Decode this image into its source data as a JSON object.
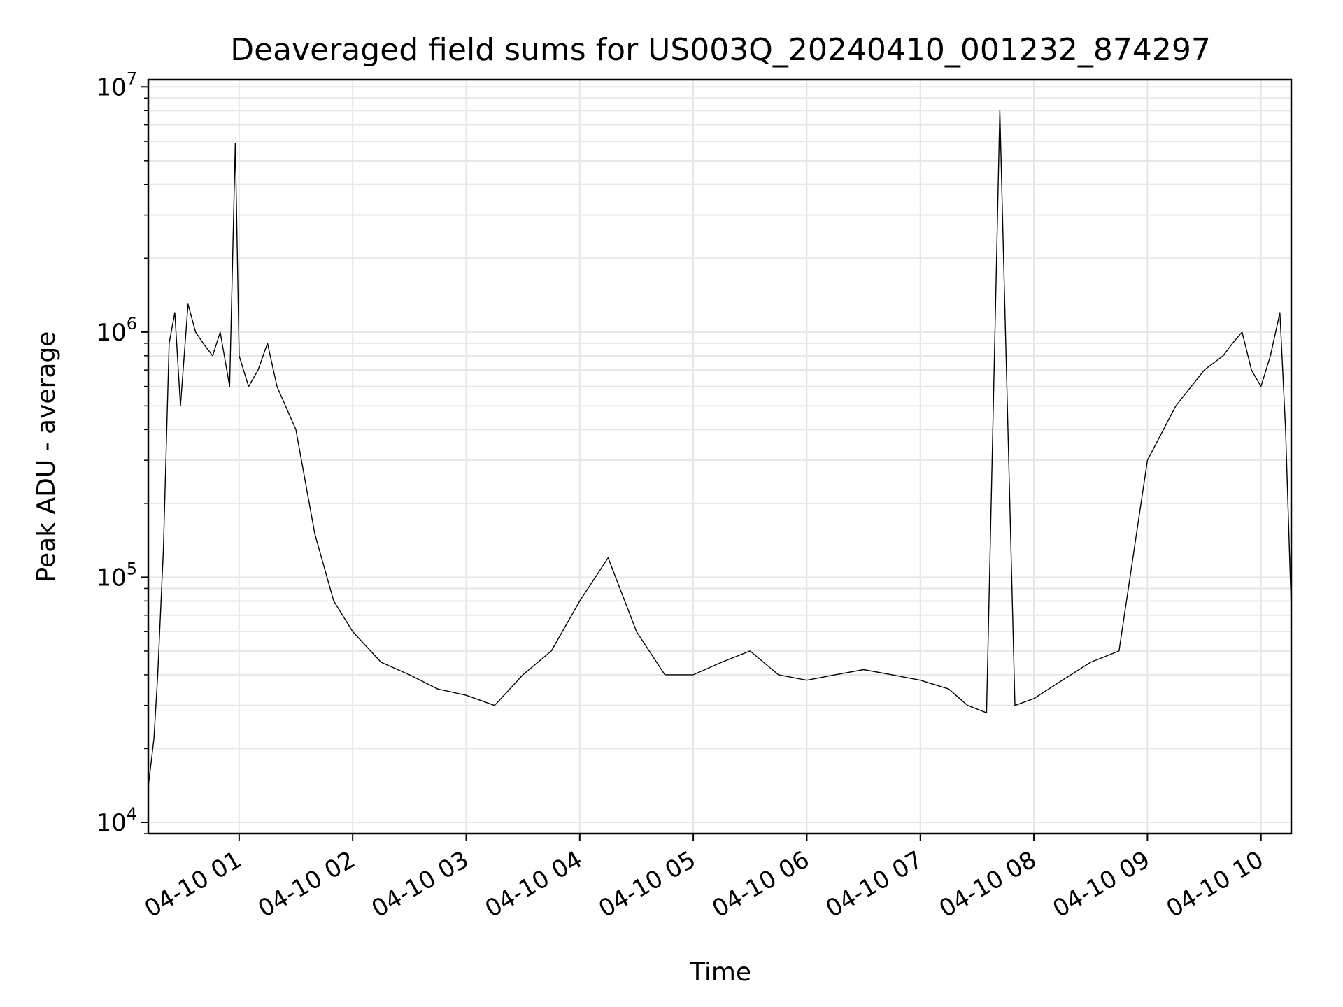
{
  "chart_data": {
    "type": "line",
    "title": "Deaveraged field sums for US003Q_20240410_001232_874297",
    "xlabel": "Time",
    "ylabel": "Peak ADU - average",
    "y_scale": "log",
    "ylim": [
      9000,
      10700000
    ],
    "xlim": [
      "2024-04-10 00:12",
      "2024-04-10 10:16"
    ],
    "x_ticks": [
      "04-10 01",
      "04-10 02",
      "04-10 03",
      "04-10 04",
      "04-10 05",
      "04-10 06",
      "04-10 07",
      "04-10 08",
      "04-10 09",
      "04-10 10"
    ],
    "x_tick_times": [
      "2024-04-10 01:00",
      "2024-04-10 02:00",
      "2024-04-10 03:00",
      "2024-04-10 04:00",
      "2024-04-10 05:00",
      "2024-04-10 06:00",
      "2024-04-10 07:00",
      "2024-04-10 08:00",
      "2024-04-10 09:00",
      "2024-04-10 10:00"
    ],
    "y_ticks": [
      {
        "value": 10000,
        "base": "10",
        "exp": "4"
      },
      {
        "value": 100000,
        "base": "10",
        "exp": "5"
      },
      {
        "value": 1000000,
        "base": "10",
        "exp": "6"
      },
      {
        "value": 10000000,
        "base": "10",
        "exp": "7"
      }
    ],
    "grid": true,
    "line_color": "#000000",
    "grid_color": "#e6e6e6",
    "series": [
      {
        "x": [
          "2024-04-10 00:12",
          "2024-04-10 00:15",
          "2024-04-10 00:17",
          "2024-04-10 00:20",
          "2024-04-10 00:23",
          "2024-04-10 00:26",
          "2024-04-10 00:29",
          "2024-04-10 00:33",
          "2024-04-10 00:37",
          "2024-04-10 00:41",
          "2024-04-10 00:46",
          "2024-04-10 00:50",
          "2024-04-10 00:55",
          "2024-04-10 00:58",
          "2024-04-10 01:00",
          "2024-04-10 01:05",
          "2024-04-10 01:10",
          "2024-04-10 01:15",
          "2024-04-10 01:20",
          "2024-04-10 01:30",
          "2024-04-10 01:40",
          "2024-04-10 01:50",
          "2024-04-10 02:00",
          "2024-04-10 02:15",
          "2024-04-10 02:30",
          "2024-04-10 02:45",
          "2024-04-10 03:00",
          "2024-04-10 03:15",
          "2024-04-10 03:30",
          "2024-04-10 03:45",
          "2024-04-10 04:00",
          "2024-04-10 04:15",
          "2024-04-10 04:30",
          "2024-04-10 04:45",
          "2024-04-10 05:00",
          "2024-04-10 05:15",
          "2024-04-10 05:30",
          "2024-04-10 05:45",
          "2024-04-10 06:00",
          "2024-04-10 06:15",
          "2024-04-10 06:30",
          "2024-04-10 06:45",
          "2024-04-10 07:00",
          "2024-04-10 07:15",
          "2024-04-10 07:25",
          "2024-04-10 07:35",
          "2024-04-10 07:42",
          "2024-04-10 07:50",
          "2024-04-10 08:00",
          "2024-04-10 08:15",
          "2024-04-10 08:30",
          "2024-04-10 08:45",
          "2024-04-10 09:00",
          "2024-04-10 09:15",
          "2024-04-10 09:30",
          "2024-04-10 09:40",
          "2024-04-10 09:45",
          "2024-04-10 09:50",
          "2024-04-10 09:55",
          "2024-04-10 10:00",
          "2024-04-10 10:05",
          "2024-04-10 10:10",
          "2024-04-10 10:13",
          "2024-04-10 10:16"
        ],
        "y": [
          14000,
          22000,
          40000,
          130000,
          900000,
          1200000,
          500000,
          1300000,
          1000000,
          900000,
          800000,
          1000000,
          600000,
          5900000,
          800000,
          600000,
          700000,
          900000,
          600000,
          400000,
          150000,
          80000,
          60000,
          45000,
          40000,
          35000,
          33000,
          30000,
          40000,
          50000,
          80000,
          120000,
          60000,
          40000,
          40000,
          45000,
          50000,
          40000,
          38000,
          40000,
          42000,
          40000,
          38000,
          35000,
          30000,
          28000,
          8000000,
          30000,
          32000,
          38000,
          45000,
          50000,
          300000,
          500000,
          700000,
          800000,
          900000,
          1000000,
          700000,
          600000,
          800000,
          1200000,
          400000,
          75000
        ]
      }
    ]
  }
}
